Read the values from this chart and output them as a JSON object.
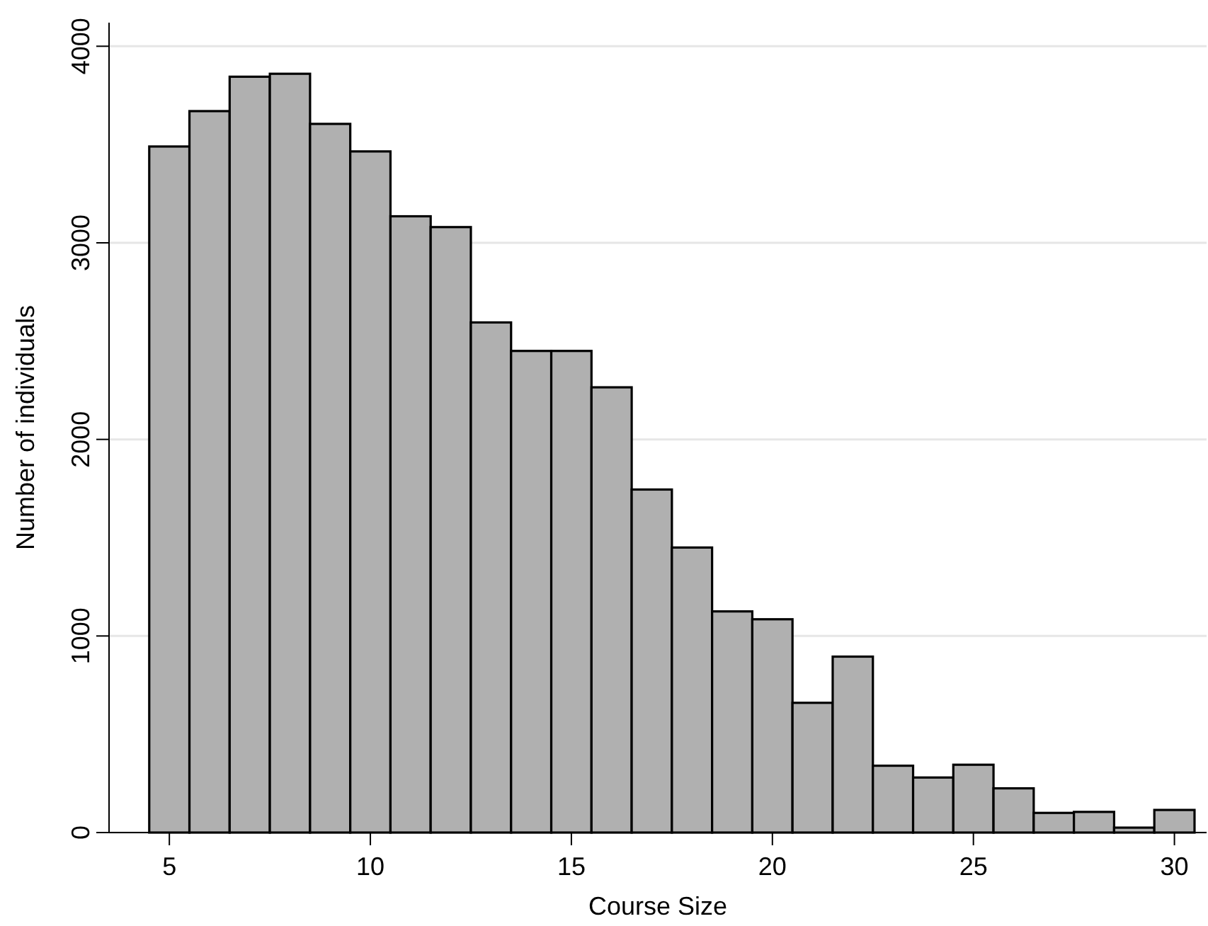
{
  "chart_data": {
    "type": "histogram",
    "xlabel": "Course Size",
    "ylabel": "Number of individuals",
    "bins": [
      4.5,
      5.5,
      6.5,
      7.5,
      8.5,
      9.5,
      10.5,
      11.5,
      12.5,
      13.5,
      14.5,
      15.5,
      16.5,
      17.5,
      18.5,
      19.5,
      20.5,
      21.5,
      22.5,
      23.5,
      24.5,
      25.5,
      26.5,
      27.5,
      28.5,
      29.5,
      30.5
    ],
    "values": [
      3490,
      3670,
      3845,
      3860,
      3605,
      3465,
      3135,
      3080,
      2595,
      2450,
      2450,
      2265,
      1745,
      1450,
      1125,
      1085,
      660,
      895,
      340,
      280,
      345,
      225,
      100,
      105,
      25,
      115
    ],
    "color": "#b0b0b0",
    "xlim": [
      3.5,
      30.8
    ],
    "xticks": [
      5,
      10,
      15,
      20,
      25,
      30
    ],
    "ylim": [
      0,
      4120
    ],
    "yticks": [
      0,
      1000,
      2000,
      3000,
      4000
    ],
    "grid": "y"
  }
}
